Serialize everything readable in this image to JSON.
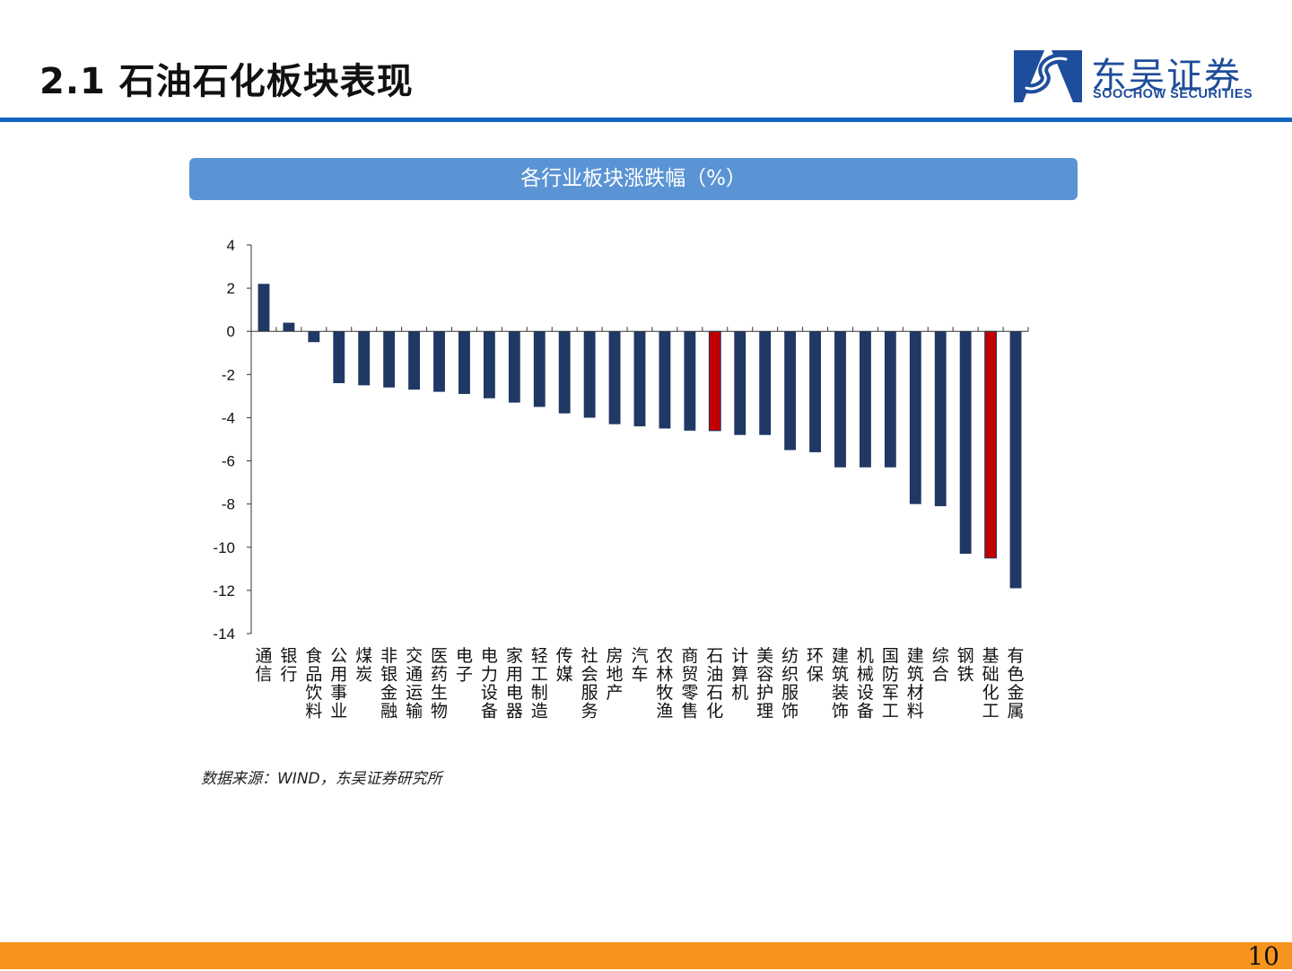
{
  "header": {
    "title": "2.1 石油石化板块表现",
    "logo_cn": "东吴证券",
    "logo_en": "SOOCHOW SECURITIES"
  },
  "chart_banner": "各行业板块涨跌幅（%）",
  "source": "数据来源：WIND，东吴证券研究所",
  "page_number": "10",
  "colors": {
    "bar": "#1f3864",
    "highlight": "#c00000",
    "banner": "#5b94d4",
    "rule": "#1565c0",
    "footer": "#f7941d"
  },
  "chart_data": {
    "type": "bar",
    "title": "各行业板块涨跌幅（%）",
    "xlabel": "",
    "ylabel": "",
    "ylim": [
      -14,
      4
    ],
    "yticks": [
      4,
      2,
      0,
      -2,
      -4,
      -6,
      -8,
      -10,
      -12,
      -14
    ],
    "grid": false,
    "legend": "none",
    "categories": [
      "通信",
      "银行",
      "食品饮料",
      "公用事业",
      "煤炭",
      "非银金融",
      "交通运输",
      "医药生物",
      "电子",
      "电力设备",
      "家用电器",
      "轻工制造",
      "传媒",
      "社会服务",
      "房地产",
      "汽车",
      "农林牧渔",
      "商贸零售",
      "石油石化",
      "计算机",
      "美容护理",
      "纺织服饰",
      "环保",
      "建筑装饰",
      "机械设备",
      "国防军工",
      "建筑材料",
      "综合",
      "钢铁",
      "基础化工",
      "有色金属"
    ],
    "values": [
      2.2,
      0.4,
      -0.5,
      -2.4,
      -2.5,
      -2.6,
      -2.7,
      -2.8,
      -2.9,
      -3.1,
      -3.3,
      -3.5,
      -3.8,
      -4.0,
      -4.3,
      -4.4,
      -4.5,
      -4.6,
      -4.6,
      -4.8,
      -4.8,
      -5.5,
      -5.6,
      -6.3,
      -6.3,
      -6.3,
      -8.0,
      -8.1,
      -10.3,
      -10.5,
      -11.9
    ],
    "highlighted": [
      "石油石化",
      "基础化工"
    ]
  }
}
